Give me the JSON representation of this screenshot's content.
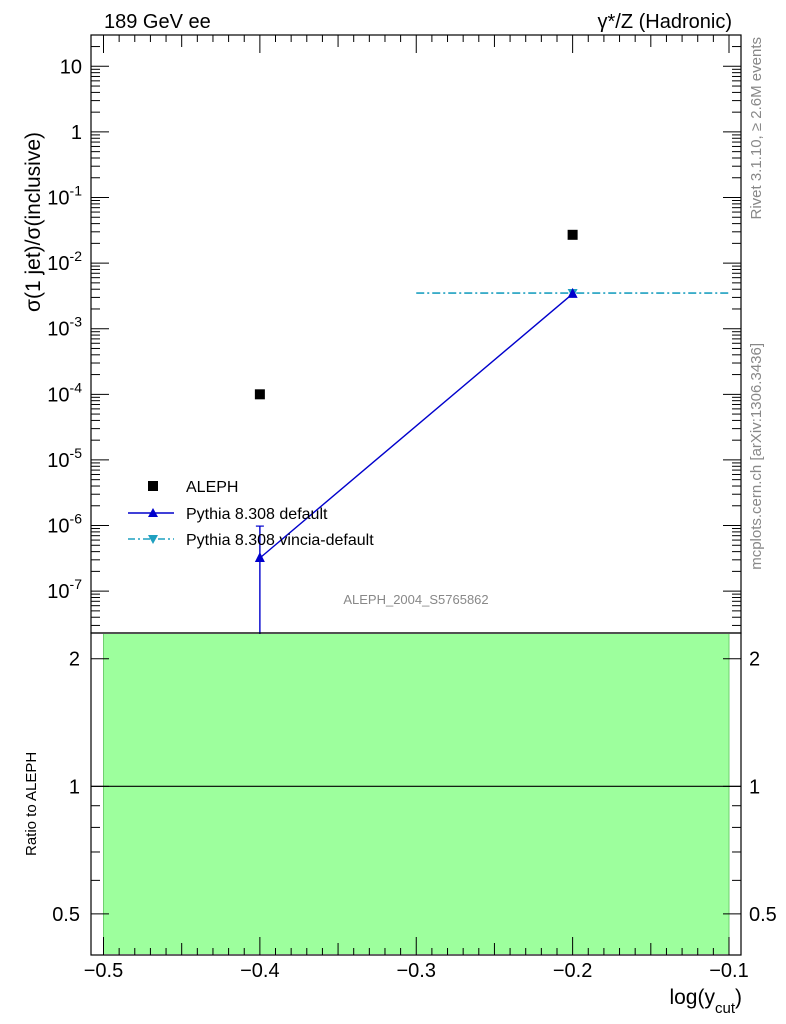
{
  "header": {
    "left_label": "189 GeV ee",
    "right_label_pre": "γ*/Z (Hadronic)"
  },
  "side_labels": {
    "rivet": "Rivet 3.1.10, ≥ 2.6M events",
    "mcplots": "mcplots.cern.ch [arXiv:1306.3436]"
  },
  "watermark": "ALEPH_2004_S5765862",
  "colors": {
    "data": "#000000",
    "pythia_default": "#0000cc",
    "vincia": "#1fa0c0",
    "ratio_band": "#9dff9d",
    "side_text": "#888888"
  },
  "chart_data": [
    {
      "type": "scatter",
      "panel": "main",
      "ylabel": "σ(1 jet)/σ(inclusive)",
      "yscale": "log",
      "xlim": [
        -0.5,
        -0.1
      ],
      "ylim": [
        2.3e-08,
        30
      ],
      "yticks": [
        {
          "value": 1e-07,
          "base": "10",
          "exp": "-7"
        },
        {
          "value": 1e-06,
          "base": "10",
          "exp": "-6"
        },
        {
          "value": 1e-05,
          "base": "10",
          "exp": "-5"
        },
        {
          "value": 0.0001,
          "base": "10",
          "exp": "-4"
        },
        {
          "value": 0.001,
          "base": "10",
          "exp": "-3"
        },
        {
          "value": 0.01,
          "base": "10",
          "exp": "-2"
        },
        {
          "value": 0.1,
          "base": "10",
          "exp": "-1"
        },
        {
          "value": 1,
          "base": "1",
          "exp": ""
        },
        {
          "value": 10,
          "base": "10",
          "exp": ""
        }
      ],
      "legend_position": "lower-left",
      "series": [
        {
          "name": "ALEPH",
          "marker": "square",
          "points": [
            {
              "x": -0.4,
              "y": 0.0001
            },
            {
              "x": -0.2,
              "y": 0.027
            }
          ]
        },
        {
          "name": "Pythia 8.308 default",
          "marker": "triangle-up",
          "line": "solid",
          "points": [
            {
              "x": -0.4,
              "y": 3.2e-07,
              "yerr_up": 6.6e-07
            },
            {
              "x": -0.2,
              "y": 0.0034
            }
          ]
        },
        {
          "name": "Pythia 8.308 vincia-default",
          "marker": "triangle-down",
          "line": "dashdot",
          "points": [
            {
              "x": -0.2,
              "y": 0.0035,
              "xlow": -0.3,
              "xhigh": -0.1
            }
          ]
        }
      ]
    },
    {
      "type": "line",
      "panel": "ratio",
      "ylabel": "Ratio to ALEPH",
      "xlabel_base": "log(y",
      "xlabel_sub": "cut",
      "xlabel_close": ")",
      "xlim": [
        -0.5,
        -0.1
      ],
      "ylim": [
        0.4,
        2.3
      ],
      "yticks": [
        0.5,
        1,
        2
      ],
      "xticks": [
        -0.5,
        -0.4,
        -0.3,
        -0.2,
        -0.1
      ],
      "xtick_labels": [
        "−0.5",
        "−0.4",
        "−0.3",
        "−0.2",
        "−0.1"
      ],
      "reference": 1,
      "band": {
        "x": [
          -0.5,
          -0.1
        ],
        "y": [
          0.4,
          2.3
        ]
      }
    }
  ]
}
